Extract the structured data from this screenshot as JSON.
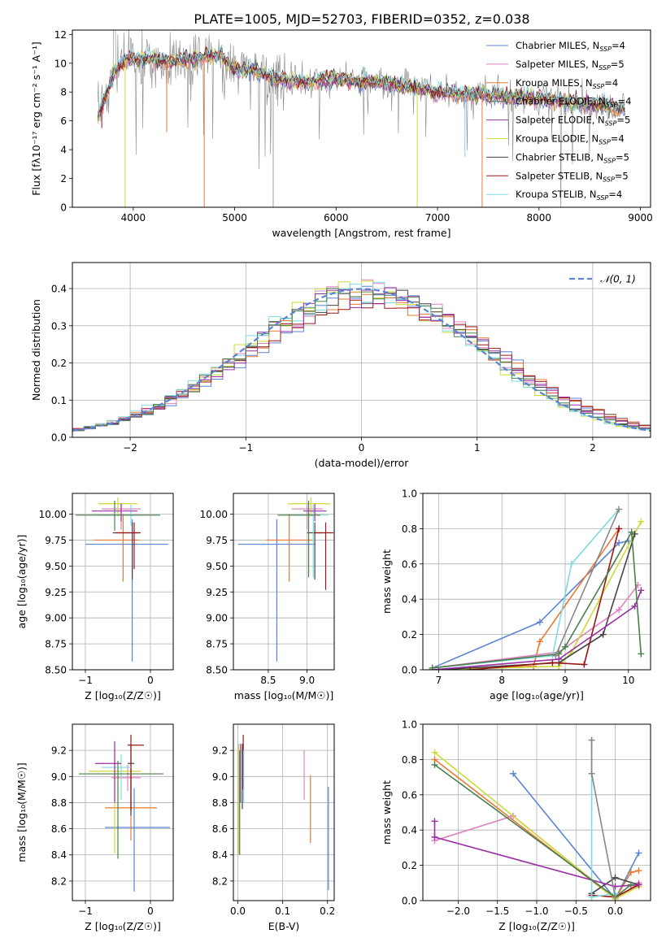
{
  "title": "PLATE=1005, MJD=52703, FIBERID=0352, z=0.038",
  "colors": {
    "c0": "#5b84d4",
    "c1": "#e87832",
    "c2": "#df83c0",
    "c3": "#cdd934",
    "c4": "#444444",
    "c5": "#9a1515",
    "c6": "#7fdbe0",
    "c7": "#9a2fa6",
    "c8": "#4a7f4a",
    "c9": "#888888",
    "grid": "#b0b0b0"
  },
  "chart_data": [
    {
      "id": "spectrum",
      "type": "line",
      "xlabel": "wavelength [Angstrom, rest frame]",
      "ylabel": "Flux [fλ10⁻¹⁷ erg cm⁻² s⁻¹ A⁻¹]",
      "xlim": [
        3400,
        9100
      ],
      "ylim": [
        0,
        12.3
      ],
      "xticks": [
        4000,
        5000,
        6000,
        7000,
        8000,
        9000
      ],
      "yticks": [
        0,
        2,
        4,
        6,
        8,
        10,
        12
      ],
      "grid": false,
      "legend_position": "top-right",
      "spectrum_shape": {
        "wl": [
          3650,
          3750,
          3850,
          3950,
          4050,
          4150,
          4300,
          4500,
          4700,
          4850,
          5000,
          5200,
          5400,
          5700,
          6000,
          6300,
          6600,
          6900,
          7200,
          7500,
          7800,
          8100,
          8400,
          8700,
          8850
        ],
        "flux": [
          6.3,
          8.2,
          9.8,
          10.4,
          10.2,
          10.4,
          10.1,
          10.2,
          10.4,
          10.6,
          9.5,
          9.5,
          8.9,
          8.7,
          8.9,
          8.7,
          8.5,
          8.1,
          7.9,
          7.8,
          7.6,
          7.5,
          7.2,
          7.0,
          6.9
        ]
      },
      "series": [
        {
          "name": "Chabrier MILES, N",
          "sub": "SSP",
          "suffix": "=4",
          "color_key": "c0"
        },
        {
          "name": "Salpeter MILES, N",
          "sub": "SSP",
          "suffix": "=5",
          "color_key": "c2"
        },
        {
          "name": "Kroupa MILES, N",
          "sub": "SSP",
          "suffix": "=4",
          "color_key": "c1"
        },
        {
          "name": "Chabrier ELODIE, N",
          "sub": "SSP",
          "suffix": "=4",
          "color_key": "c8"
        },
        {
          "name": "Salpeter ELODIE, N",
          "sub": "SSP",
          "suffix": "=5",
          "color_key": "c7"
        },
        {
          "name": "Kroupa ELODIE, N",
          "sub": "SSP",
          "suffix": "=4",
          "color_key": "c3"
        },
        {
          "name": "Chabrier STELIB, N",
          "sub": "SSP",
          "suffix": "=5",
          "color_key": "c4"
        },
        {
          "name": "Salpeter STELIB, N",
          "sub": "SSP",
          "suffix": "=5",
          "color_key": "c5"
        },
        {
          "name": "Kroupa STELIB, N",
          "sub": "SSP",
          "suffix": "=4",
          "color_key": "c6"
        }
      ]
    },
    {
      "id": "residuals",
      "type": "histogram",
      "xlabel": "(data-model)/error",
      "ylabel": "Normed distribution",
      "xlim": [
        -2.5,
        2.5
      ],
      "ylim": [
        0,
        0.47
      ],
      "xticks": [
        -2,
        -1,
        0,
        1,
        2
      ],
      "yticks": [
        0.0,
        0.1,
        0.2,
        0.3,
        0.4
      ],
      "grid": true,
      "legend_position": "top-right",
      "reference_curve": {
        "name": "𝒩(0, 1)",
        "mean": 0,
        "sigma": 1,
        "color_key": "c0"
      },
      "bin_width": 0.1
    },
    {
      "id": "age_vs_z",
      "type": "errorbar",
      "xlabel": "Z [log₁₀(Z/Z☉)]",
      "ylabel": "age  [log₁₀(age/yr)]",
      "xlim": [
        -1.2,
        0.35
      ],
      "ylim": [
        8.5,
        10.2
      ],
      "xticks": [
        -1,
        0
      ],
      "yticks": [
        8.5,
        8.75,
        9.0,
        9.25,
        9.5,
        9.75,
        10.0
      ],
      "grid": true,
      "points": [
        {
          "color_key": "c0",
          "x": -0.28,
          "y": 9.71,
          "xerr": [
            0.72,
            0.55
          ],
          "yerr": [
            1.13,
            0.24
          ]
        },
        {
          "color_key": "c1",
          "x": -0.42,
          "y": 9.75,
          "xerr": [
            0.45,
            0.25
          ],
          "yerr": [
            0.4,
            0.25
          ]
        },
        {
          "color_key": "c2",
          "x": -0.45,
          "y": 10.05,
          "xerr": [
            0.3,
            0.3
          ],
          "yerr": [
            0.2,
            0.06
          ]
        },
        {
          "color_key": "c3",
          "x": -0.5,
          "y": 10.1,
          "xerr": [
            0.3,
            0.3
          ],
          "yerr": [
            0.12,
            0.06
          ]
        },
        {
          "color_key": "c4",
          "x": -0.28,
          "y": 9.82,
          "xerr": [
            0.3,
            0.1
          ],
          "yerr": [
            0.45,
            0.1
          ]
        },
        {
          "color_key": "c5",
          "x": -0.25,
          "y": 9.82,
          "xerr": [
            0.28,
            0.1
          ],
          "yerr": [
            0.35,
            0.1
          ]
        },
        {
          "color_key": "c6",
          "x": -0.3,
          "y": 9.99,
          "xerr": [
            0.5,
            0.15
          ],
          "yerr": [
            0.1,
            0.1
          ]
        },
        {
          "color_key": "c7",
          "x": -0.45,
          "y": 10.03,
          "xerr": [
            0.45,
            0.25
          ],
          "yerr": [
            0.1,
            0.07
          ]
        },
        {
          "color_key": "c8",
          "x": -0.55,
          "y": 9.99,
          "xerr": [
            0.6,
            0.7
          ],
          "yerr": [
            0.15,
            0.14
          ]
        }
      ]
    },
    {
      "id": "age_vs_mass",
      "type": "errorbar",
      "xlabel": "mass [log₁₀(M/M☉)]",
      "ylabel": "",
      "xlim": [
        8.05,
        9.35
      ],
      "ylim": [
        8.5,
        10.2
      ],
      "xticks": [
        8.5,
        9.0
      ],
      "yticks": [
        8.5,
        8.75,
        9.0,
        9.25,
        9.5,
        9.75,
        10.0
      ],
      "grid": true,
      "points": [
        {
          "color_key": "c0",
          "x": 8.61,
          "y": 9.71,
          "xerr": [
            0.5,
            0.5
          ],
          "yerr": [
            1.13,
            0.24
          ]
        },
        {
          "color_key": "c1",
          "x": 8.77,
          "y": 9.75,
          "xerr": [
            0.3,
            0.3
          ],
          "yerr": [
            0.4,
            0.25
          ]
        },
        {
          "color_key": "c2",
          "x": 9.0,
          "y": 10.05,
          "xerr": [
            0.2,
            0.2
          ],
          "yerr": [
            0.2,
            0.06
          ]
        },
        {
          "color_key": "c3",
          "x": 9.05,
          "y": 10.1,
          "xerr": [
            0.3,
            0.25
          ],
          "yerr": [
            0.12,
            0.06
          ]
        },
        {
          "color_key": "c4",
          "x": 9.1,
          "y": 9.82,
          "xerr": [
            0.1,
            0.1
          ],
          "yerr": [
            0.45,
            0.1
          ]
        },
        {
          "color_key": "c5",
          "x": 9.24,
          "y": 9.82,
          "xerr": [
            0.15,
            0.1
          ],
          "yerr": [
            0.55,
            0.1
          ]
        },
        {
          "color_key": "c6",
          "x": 9.08,
          "y": 9.99,
          "xerr": [
            0.3,
            0.2
          ],
          "yerr": [
            0.6,
            0.1
          ]
        },
        {
          "color_key": "c7",
          "x": 9.1,
          "y": 10.03,
          "xerr": [
            0.15,
            0.15
          ],
          "yerr": [
            0.1,
            0.07
          ]
        },
        {
          "color_key": "c8",
          "x": 9.02,
          "y": 9.99,
          "xerr": [
            0.4,
            0.15
          ],
          "yerr": [
            0.6,
            0.14
          ]
        }
      ]
    },
    {
      "id": "weight_vs_age",
      "type": "line",
      "xlabel": "age  [log₁₀(age/yr)]",
      "ylabel": "mass weight",
      "xlim": [
        6.75,
        10.35
      ],
      "ylim": [
        0,
        1.0
      ],
      "xticks": [
        7,
        8,
        9,
        10
      ],
      "yticks": [
        0.0,
        0.2,
        0.4,
        0.6,
        0.8,
        1.0
      ],
      "grid": true,
      "series": [
        {
          "color_key": "c0",
          "x": [
            6.9,
            8.6,
            9.85,
            10.0
          ],
          "y": [
            0.01,
            0.27,
            0.72,
            0.73
          ]
        },
        {
          "color_key": "c1",
          "x": [
            7.0,
            8.5,
            8.6,
            9.85
          ],
          "y": [
            0.0,
            0.02,
            0.16,
            0.8
          ]
        },
        {
          "color_key": "c2",
          "x": [
            6.9,
            8.9,
            9.85,
            10.15
          ],
          "y": [
            0.01,
            0.1,
            0.34,
            0.48
          ]
        },
        {
          "color_key": "c3",
          "x": [
            6.9,
            8.9,
            9.1,
            10.2
          ],
          "y": [
            0.0,
            0.02,
            0.1,
            0.84
          ]
        },
        {
          "color_key": "c4",
          "x": [
            7.0,
            8.9,
            9.6,
            10.1
          ],
          "y": [
            0.0,
            0.04,
            0.2,
            0.77
          ]
        },
        {
          "color_key": "c5",
          "x": [
            7.5,
            8.8,
            9.3,
            9.85
          ],
          "y": [
            0.0,
            0.04,
            0.03,
            0.8
          ]
        },
        {
          "color_key": "c6",
          "x": [
            6.9,
            8.8,
            9.1,
            9.85
          ],
          "y": [
            0.01,
            0.08,
            0.6,
            0.91
          ]
        },
        {
          "color_key": "c7",
          "x": [
            6.9,
            8.9,
            10.1,
            10.2
          ],
          "y": [
            0.0,
            0.06,
            0.36,
            0.45
          ]
        },
        {
          "color_key": "c8",
          "x": [
            6.9,
            8.9,
            9.0,
            10.05,
            10.2
          ],
          "y": [
            0.01,
            0.09,
            0.13,
            0.78,
            0.09
          ]
        },
        {
          "color_key": "c9",
          "x": [
            8.85,
            9.85
          ],
          "y": [
            0.08,
            0.91
          ]
        }
      ]
    },
    {
      "id": "mass_vs_z",
      "type": "errorbar",
      "xlabel": "Z [log₁₀(Z/Z☉)]",
      "ylabel": "mass [log₁₀(M/M☉)]",
      "xlim": [
        -1.2,
        0.35
      ],
      "ylim": [
        8.05,
        9.4
      ],
      "xticks": [
        -1,
        0
      ],
      "yticks": [
        8.2,
        8.4,
        8.6,
        8.8,
        9.0,
        9.2
      ],
      "grid": true,
      "points": [
        {
          "color_key": "c0",
          "x": -0.25,
          "y": 8.61,
          "xerr": [
            0.45,
            0.55
          ],
          "yerr": [
            0.49,
            0.3
          ]
        },
        {
          "color_key": "c1",
          "x": -0.3,
          "y": 8.76,
          "xerr": [
            0.4,
            0.4
          ],
          "yerr": [
            0.25,
            0.3
          ]
        },
        {
          "color_key": "c2",
          "x": -0.35,
          "y": 8.99,
          "xerr": [
            0.25,
            0.2
          ],
          "yerr": [
            0.1,
            0.1
          ]
        },
        {
          "color_key": "c3",
          "x": -0.55,
          "y": 9.04,
          "xerr": [
            0.4,
            0.4
          ],
          "yerr": [
            0.63,
            0.2
          ]
        },
        {
          "color_key": "c4",
          "x": -0.3,
          "y": 9.1,
          "xerr": [
            0.05,
            0.05
          ],
          "yerr": [
            0.4,
            0.15
          ]
        },
        {
          "color_key": "c5",
          "x": -0.3,
          "y": 9.24,
          "xerr": [
            0.05,
            0.2
          ],
          "yerr": [
            0.5,
            0.08
          ]
        },
        {
          "color_key": "c6",
          "x": -0.45,
          "y": 9.07,
          "xerr": [
            0.3,
            0.15
          ],
          "yerr": [
            0.25,
            0.1
          ]
        },
        {
          "color_key": "c7",
          "x": -0.55,
          "y": 9.1,
          "xerr": [
            0.3,
            0.1
          ],
          "yerr": [
            0.3,
            0.17
          ]
        },
        {
          "color_key": "c8",
          "x": -0.5,
          "y": 9.02,
          "xerr": [
            0.6,
            0.7
          ],
          "yerr": [
            0.65,
            0.1
          ]
        }
      ]
    },
    {
      "id": "mass_vs_ebv",
      "type": "errorbar",
      "xlabel": "E(B-V)",
      "ylabel": "",
      "xlim": [
        -0.01,
        0.215
      ],
      "ylim": [
        8.05,
        9.4
      ],
      "xticks": [
        0.0,
        0.1,
        0.2
      ],
      "yticks": [
        8.2,
        8.4,
        8.6,
        8.8,
        9.0,
        9.2
      ],
      "grid": true,
      "points": [
        {
          "color_key": "c0",
          "x": 0.202,
          "y": 8.62,
          "xerr": [
            0,
            0
          ],
          "yerr": [
            0.49,
            0.3
          ]
        },
        {
          "color_key": "c1",
          "x": 0.162,
          "y": 8.76,
          "xerr": [
            0,
            0
          ],
          "yerr": [
            0.27,
            0.25
          ]
        },
        {
          "color_key": "c2",
          "x": 0.148,
          "y": 9.0,
          "xerr": [
            0,
            0
          ],
          "yerr": [
            0.18,
            0.2
          ]
        },
        {
          "color_key": "c3",
          "x": 0.002,
          "y": 8.8,
          "xerr": [
            0,
            0
          ],
          "yerr": [
            0.4,
            0.45
          ]
        },
        {
          "color_key": "c4",
          "x": 0.01,
          "y": 9.1,
          "xerr": [
            0,
            0
          ],
          "yerr": [
            0.35,
            0.15
          ]
        },
        {
          "color_key": "c5",
          "x": 0.012,
          "y": 9.2,
          "xerr": [
            0,
            0
          ],
          "yerr": [
            0.3,
            0.12
          ]
        },
        {
          "color_key": "c6",
          "x": 0.013,
          "y": 9.05,
          "xerr": [
            0,
            0
          ],
          "yerr": [
            0.25,
            0.15
          ]
        },
        {
          "color_key": "c7",
          "x": 0.006,
          "y": 9.1,
          "xerr": [
            0,
            0
          ],
          "yerr": [
            0.3,
            0.15
          ]
        },
        {
          "color_key": "c8",
          "x": 0.004,
          "y": 8.9,
          "xerr": [
            0,
            0
          ],
          "yerr": [
            0.5,
            0.3
          ]
        }
      ]
    },
    {
      "id": "weight_vs_z",
      "type": "line",
      "xlabel": "Z [log₁₀(Z/Z☉)]",
      "ylabel": "mass weight",
      "xlim": [
        -2.45,
        0.45
      ],
      "ylim": [
        0,
        1.0
      ],
      "xticks": [
        -2.0,
        -1.5,
        -1.0,
        -0.5,
        0.0
      ],
      "yticks": [
        0.0,
        0.2,
        0.4,
        0.6,
        0.8,
        1.0
      ],
      "grid": true,
      "series": [
        {
          "color_key": "c0",
          "x": [
            -1.3,
            0.0,
            0.3
          ],
          "y": [
            0.72,
            0.01,
            0.27
          ]
        },
        {
          "color_key": "c1",
          "x": [
            -2.3,
            0.0,
            0.2,
            0.3
          ],
          "y": [
            0.8,
            0.01,
            0.16,
            0.17
          ]
        },
        {
          "color_key": "c2",
          "x": [
            -2.3,
            -1.3,
            0.0,
            0.3
          ],
          "y": [
            0.34,
            0.48,
            0.01,
            0.1
          ]
        },
        {
          "color_key": "c3",
          "x": [
            -2.3,
            0.0,
            0.3
          ],
          "y": [
            0.84,
            0.01,
            0.08
          ]
        },
        {
          "color_key": "c4",
          "x": [
            -0.3,
            0.0,
            0.3
          ],
          "y": [
            0.04,
            0.13,
            0.09
          ]
        },
        {
          "color_key": "c5",
          "x": [
            -0.3,
            0.0,
            0.3
          ],
          "y": [
            0.03,
            0.02,
            0.09
          ]
        },
        {
          "color_key": "c6",
          "x": [
            -0.3,
            -0.3,
            0.0
          ],
          "y": [
            0.91,
            0.02,
            0.04
          ]
        },
        {
          "color_key": "c7",
          "x": [
            -2.3,
            -2.3,
            0.0,
            0.3
          ],
          "y": [
            0.45,
            0.36,
            0.08,
            0.09
          ]
        },
        {
          "color_key": "c8",
          "x": [
            -2.3,
            0.0,
            0.2
          ],
          "y": [
            0.77,
            0.02,
            0.09
          ]
        },
        {
          "color_key": "c9",
          "x": [
            -0.3,
            -0.3,
            0.0
          ],
          "y": [
            0.91,
            0.72,
            0.02
          ]
        }
      ]
    }
  ]
}
